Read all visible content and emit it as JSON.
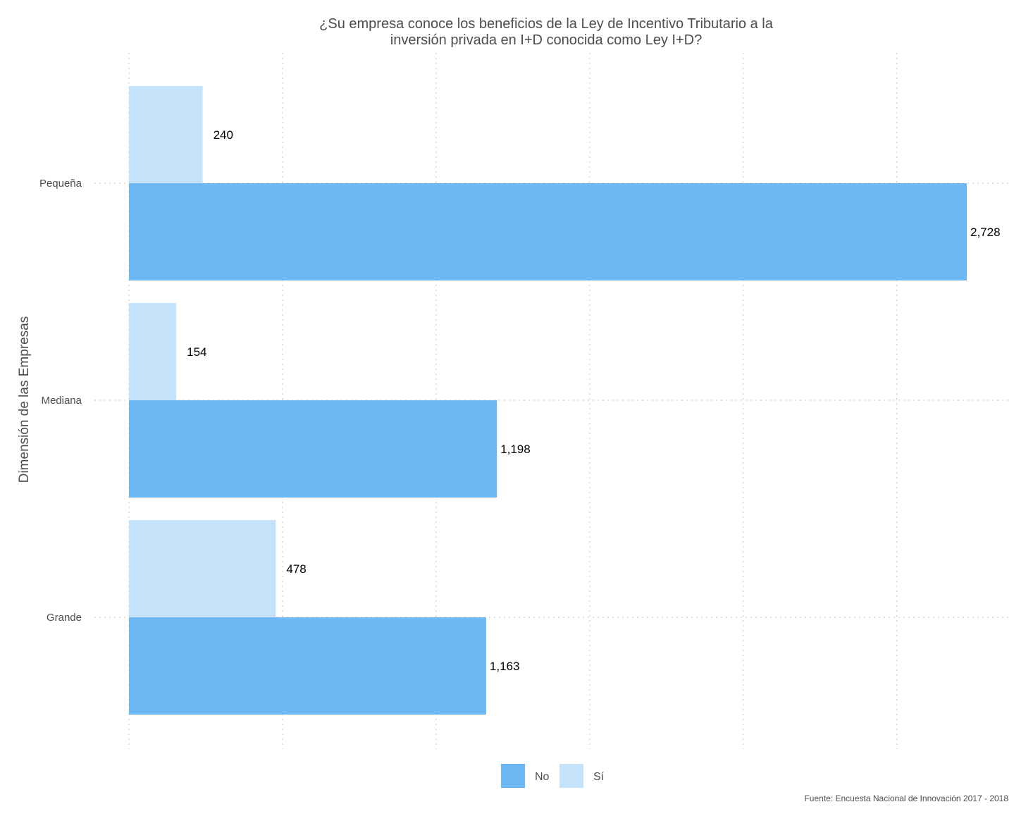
{
  "chart_data": {
    "type": "bar",
    "orientation": "horizontal",
    "title": "¿Su empresa conoce los beneficios de la Ley de Incentivo Tributario a la inversión privada en I+D conocida como Ley I+D?",
    "title_lines": [
      "¿Su empresa conoce los beneficios de la Ley de Incentivo Tributario a la",
      "inversión privada en I+D conocida como Ley I+D?"
    ],
    "ylabel": "Dimensión de las Empresas",
    "xlabel": "",
    "categories": [
      "Pequeña",
      "Mediana",
      "Grande"
    ],
    "series": [
      {
        "name": "Sí",
        "color": "#c4e2fa",
        "values": [
          240,
          154,
          478
        ],
        "labels": [
          "240",
          "154",
          "478"
        ]
      },
      {
        "name": "No",
        "color": "#6db7f3",
        "values": [
          2728,
          1198,
          1163
        ],
        "labels": [
          "2,728",
          "1,198",
          "1,163"
        ]
      }
    ],
    "legend_order": [
      "No",
      "Sí"
    ],
    "xlim": [
      0,
      2750
    ],
    "x_gridlines": [
      0,
      500,
      1000,
      1500,
      2000,
      2500
    ],
    "grid": true,
    "legend_position": "bottom",
    "caption": "Fuente: Encuesta Nacional de Innovación 2017 - 2018"
  }
}
